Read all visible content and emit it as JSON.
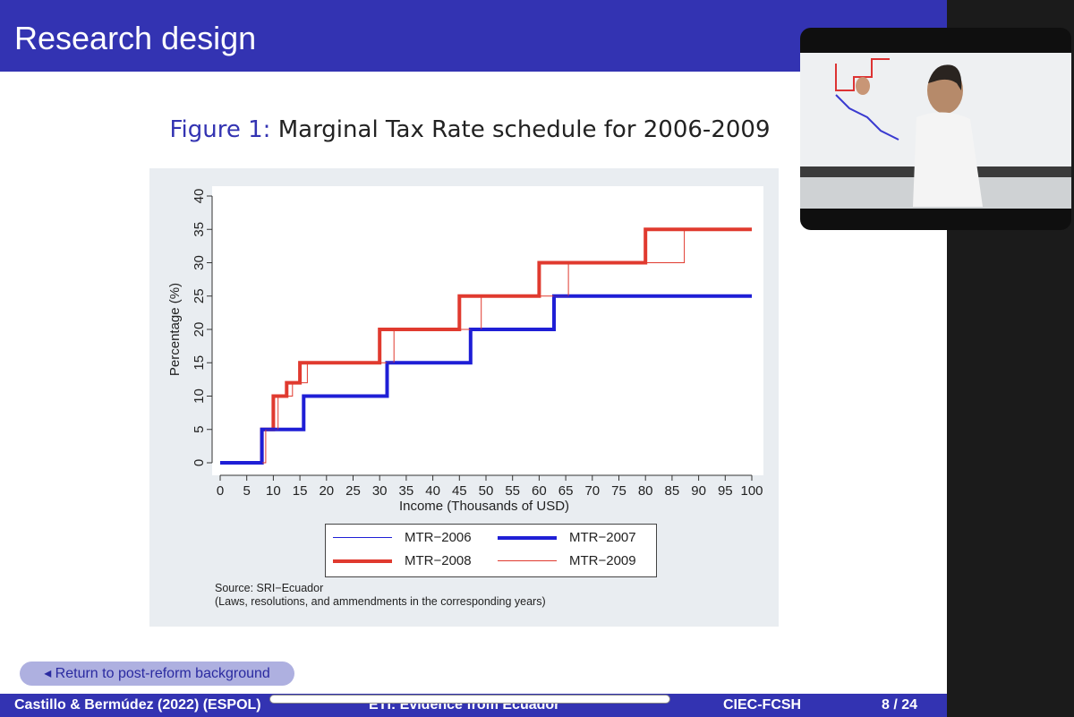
{
  "slide": {
    "title": "Research design",
    "figure_label": "Figure 1:",
    "figure_title": "Marginal Tax Rate schedule for 2006-2009",
    "source_line1": "Source: SRI−Ecuador",
    "source_line2": "(Laws, resolutions, and ammendments in the corresponding years)",
    "nav_button": "◂ Return to post-reform background",
    "footer": {
      "left": "Castillo & Bermúdez (2022)  (ESPOL)",
      "center": "ETI: Evidence from Ecuador",
      "right_org": "CIEC-FCSH",
      "page": "8 / 24"
    }
  },
  "colors": {
    "title_bar": "#3333b2",
    "blue_series": "#1f1fd6",
    "red_series": "#e03a2f",
    "plot_region": "#ffffff",
    "graph_region": "#e9edf1"
  },
  "chart_data": {
    "type": "line",
    "xlabel": "Income (Thousands of USD)",
    "ylabel": "Percentage (%)",
    "xlim": [
      0,
      100
    ],
    "ylim": [
      0,
      40
    ],
    "x_ticks": [
      0,
      5,
      10,
      15,
      20,
      25,
      30,
      35,
      40,
      45,
      50,
      55,
      60,
      65,
      70,
      75,
      80,
      85,
      90,
      95,
      100
    ],
    "y_ticks": [
      0,
      5,
      10,
      15,
      20,
      25,
      30,
      35,
      40
    ],
    "grid": false,
    "legend_position": "bottom",
    "step": true,
    "series": [
      {
        "name": "MTR−2006",
        "color": "#1f1fd6",
        "width": 1,
        "x": [
          0,
          7.85,
          7.85,
          15.7,
          15.7,
          31.4,
          31.4,
          47.1,
          47.1,
          62.8,
          62.8,
          100
        ],
        "y": [
          0,
          0,
          5,
          5,
          10,
          10,
          15,
          15,
          20,
          20,
          25,
          25
        ]
      },
      {
        "name": "MTR−2007",
        "color": "#1f1fd6",
        "width": 4,
        "x": [
          0,
          7.85,
          7.85,
          15.7,
          15.7,
          31.4,
          31.4,
          47.1,
          47.1,
          62.8,
          62.8,
          100
        ],
        "y": [
          0,
          0,
          5,
          5,
          10,
          10,
          15,
          15,
          20,
          20,
          25,
          25
        ]
      },
      {
        "name": "MTR−2008",
        "color": "#e03a2f",
        "width": 4,
        "x": [
          0,
          7.85,
          7.85,
          10,
          10,
          12.5,
          12.5,
          15,
          15,
          30,
          30,
          45,
          45,
          60,
          60,
          80,
          80,
          100
        ],
        "y": [
          0,
          0,
          5,
          5,
          10,
          10,
          12,
          12,
          15,
          15,
          20,
          20,
          25,
          25,
          30,
          30,
          35,
          35
        ]
      },
      {
        "name": "MTR−2009",
        "color": "#e03a2f",
        "width": 1,
        "x": [
          0,
          8.57,
          8.57,
          10.9,
          10.9,
          13.6,
          13.6,
          16.4,
          16.4,
          32.7,
          32.7,
          49.1,
          49.1,
          65.5,
          65.5,
          87.3,
          87.3,
          100
        ],
        "y": [
          0,
          0,
          5,
          5,
          10,
          10,
          12,
          12,
          15,
          15,
          20,
          20,
          25,
          25,
          30,
          30,
          35,
          35
        ]
      }
    ]
  }
}
